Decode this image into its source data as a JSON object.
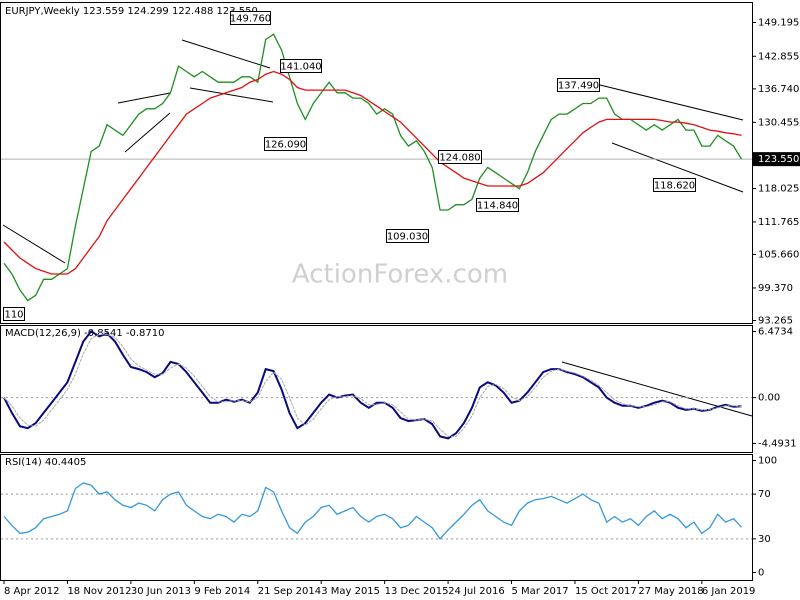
{
  "chart_data": [
    {
      "type": "line",
      "title": "EURJPY,Weekly 123.559 124.299 122.488 123.550",
      "watermark": "ActionForex.com",
      "categories": [
        "8 Apr 2012",
        null,
        null,
        null,
        null,
        null,
        null,
        null,
        "18 Nov 2012",
        null,
        null,
        null,
        null,
        null,
        null,
        null,
        "30 Jun 2013",
        null,
        null,
        null,
        null,
        null,
        null,
        null,
        "9 Feb 2014",
        null,
        null,
        null,
        null,
        null,
        null,
        null,
        "21 Sep 2014",
        null,
        null,
        null,
        null,
        null,
        null,
        null,
        "3 May 2015",
        null,
        null,
        null,
        null,
        null,
        null,
        null,
        "13 Dec 2015",
        null,
        null,
        null,
        null,
        null,
        null,
        null,
        "24 Jul 2016",
        null,
        null,
        null,
        null,
        null,
        null,
        null,
        "5 Mar 2017",
        null,
        null,
        null,
        null,
        null,
        null,
        null,
        "15 Oct 2017",
        null,
        null,
        null,
        null,
        null,
        null,
        null,
        "27 May 2018",
        null,
        null,
        null,
        null,
        null,
        null,
        null,
        "6 Jan 2019",
        null,
        null,
        null,
        null,
        null
      ],
      "series": [
        {
          "color": "#1f8f1f",
          "values": [
            104,
            102,
            99,
            97,
            98,
            101,
            101,
            102,
            103,
            111,
            118,
            125,
            126,
            130,
            129,
            128,
            130,
            132,
            133,
            133,
            134,
            136,
            141,
            140,
            139,
            140,
            139,
            138,
            138,
            138,
            139,
            139,
            138,
            146,
            147,
            144,
            139,
            134,
            131,
            134,
            136,
            138,
            136,
            136,
            135,
            135,
            134,
            132,
            133,
            132,
            128,
            126,
            127,
            125,
            122,
            114,
            114,
            115,
            115,
            116,
            120,
            122,
            121,
            120,
            119,
            118,
            121,
            125,
            128,
            131,
            132,
            132,
            133,
            134,
            134,
            135,
            135,
            132,
            131,
            131,
            130,
            129,
            130,
            129,
            130,
            131,
            129,
            129,
            126,
            126,
            128,
            127,
            126,
            123.55
          ]
        },
        {
          "color": "#e01010",
          "values": [
            108,
            106.5,
            105,
            104,
            103,
            102.5,
            102,
            102,
            102,
            103,
            105,
            107,
            109,
            112,
            114,
            116,
            118,
            120,
            122,
            124,
            126,
            128,
            130,
            132,
            133,
            134,
            135,
            135.5,
            136,
            136.5,
            137,
            138,
            138.5,
            139.5,
            140,
            139.5,
            138.5,
            137,
            136.5,
            136.5,
            136.5,
            136.5,
            136.5,
            136.5,
            136,
            135.5,
            134.5,
            133.5,
            132.5,
            131.5,
            130.5,
            129,
            127.5,
            126,
            124.5,
            123,
            122,
            121,
            120,
            119.5,
            119,
            118.5,
            118.5,
            118.5,
            118.5,
            118.5,
            119,
            120,
            121,
            122.5,
            124,
            125.5,
            127,
            128.5,
            129.5,
            130.5,
            131,
            131,
            131,
            131,
            131,
            131,
            131,
            130.8,
            130.5,
            130.5,
            130.3,
            130,
            129.5,
            129,
            128.8,
            128.5,
            128.3,
            128
          ]
        }
      ],
      "ylim": [
        92.7,
        152.95
      ],
      "yticks": [
        149.195,
        142.855,
        {
          "value": 136.74,
          "label": "136.740"
        },
        130.455,
        118.025,
        111.765,
        {
          "value": 105.66,
          "label": "105.660"
        },
        {
          "value": 99.37,
          "label": "99.370"
        },
        93.265
      ],
      "last_price": {
        "value": 123.55,
        "label": "123.550"
      },
      "annotations": [
        "149.760",
        "141.040",
        "137.490",
        "126.090",
        "124.080",
        "118.620",
        "114.840",
        "109.030",
        "110"
      ]
    },
    {
      "type": "line",
      "title": "MACD(12,26,9) -0.8541 -0.8710",
      "series": [
        {
          "color": "#0a0a80",
          "values": [
            0,
            -1.5,
            -2.8,
            -3.0,
            -2.5,
            -1.5,
            -0.5,
            0.5,
            1.5,
            3.5,
            5.5,
            6.5,
            6.0,
            6.3,
            5.5,
            4.2,
            3.0,
            2.8,
            2.5,
            2.0,
            2.4,
            3.5,
            3.3,
            2.5,
            1.5,
            0.5,
            -0.5,
            -0.5,
            -0.2,
            -0.4,
            -0.2,
            -0.5,
            0.5,
            2.8,
            2.6,
            0.8,
            -1.5,
            -3.0,
            -2.5,
            -1.5,
            -0.5,
            0.3,
            0.0,
            0.2,
            0.3,
            -0.5,
            -1.0,
            -0.5,
            -0.5,
            -1.0,
            -2.0,
            -2.3,
            -2.2,
            -2.1,
            -2.6,
            -3.8,
            -4.0,
            -3.5,
            -2.5,
            -1.0,
            1.0,
            1.5,
            1.2,
            0.5,
            -0.5,
            -0.3,
            0.5,
            1.5,
            2.5,
            2.8,
            2.8,
            2.5,
            2.3,
            2.0,
            1.5,
            1.0,
            0.0,
            -0.5,
            -0.8,
            -0.8,
            -1.0,
            -0.8,
            -0.5,
            -0.3,
            -0.5,
            -1.0,
            -1.2,
            -1.1,
            -1.3,
            -1.2,
            -0.9,
            -0.7,
            -0.9,
            -0.85
          ]
        },
        {
          "color": "#a8a8a8",
          "values": [
            0,
            -0.8,
            -2.0,
            -2.7,
            -2.8,
            -2.2,
            -1.2,
            -0.2,
            0.8,
            2.3,
            4.3,
            5.8,
            6.2,
            6.2,
            5.9,
            5.0,
            3.8,
            3.1,
            2.7,
            2.3,
            2.3,
            2.9,
            3.3,
            2.9,
            2.1,
            1.1,
            0.1,
            -0.4,
            -0.4,
            -0.3,
            -0.3,
            -0.4,
            0.0,
            1.6,
            2.5,
            1.8,
            0.0,
            -2.0,
            -2.7,
            -2.1,
            -1.1,
            -0.2,
            0.1,
            0.1,
            0.2,
            -0.1,
            -0.7,
            -0.7,
            -0.5,
            -0.7,
            -1.4,
            -2.1,
            -2.2,
            -2.1,
            -2.3,
            -3.1,
            -3.8,
            -3.8,
            -3.0,
            -1.8,
            0.0,
            1.1,
            1.3,
            0.9,
            0.1,
            -0.3,
            0.1,
            1.0,
            2.0,
            2.6,
            2.8,
            2.6,
            2.4,
            2.1,
            1.7,
            1.2,
            0.5,
            -0.2,
            -0.6,
            -0.8,
            -0.9,
            -0.9,
            -0.7,
            -0.4,
            -0.4,
            -0.8,
            -1.1,
            -1.1,
            -1.2,
            -1.2,
            -1.0,
            -0.8,
            -0.8,
            -0.87
          ]
        }
      ],
      "ylim": [
        -5.38,
        7.07
      ],
      "yticks": [
        6.4734,
        {
          "value": 0,
          "label": "0.00"
        },
        -4.4931
      ]
    },
    {
      "type": "line",
      "title": "RSI(14) 40.4405",
      "series": [
        {
          "color": "#3399dd",
          "values": [
            50,
            42,
            35,
            36,
            40,
            48,
            50,
            52,
            55,
            75,
            80,
            78,
            70,
            72,
            65,
            60,
            58,
            62,
            60,
            55,
            65,
            70,
            72,
            60,
            55,
            50,
            48,
            52,
            50,
            45,
            52,
            50,
            55,
            76,
            72,
            55,
            40,
            35,
            45,
            50,
            58,
            60,
            52,
            55,
            58,
            50,
            45,
            50,
            52,
            48,
            40,
            42,
            50,
            45,
            40,
            30,
            38,
            45,
            52,
            60,
            65,
            55,
            50,
            45,
            42,
            55,
            62,
            65,
            66,
            68,
            65,
            62,
            66,
            70,
            65,
            62,
            45,
            50,
            45,
            48,
            42,
            50,
            55,
            48,
            52,
            48,
            40,
            45,
            35,
            40,
            52,
            45,
            48,
            40.44
          ]
        }
      ],
      "ylim": [
        -7.2,
        105.4
      ],
      "yticks": [
        100,
        70,
        30,
        0
      ]
    }
  ]
}
